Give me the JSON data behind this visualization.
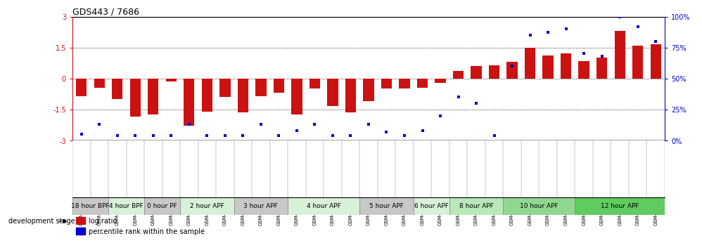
{
  "title": "GDS443 / 7686",
  "samples": [
    "GSM4585",
    "GSM4586",
    "GSM4587",
    "GSM4588",
    "GSM4589",
    "GSM4590",
    "GSM4591",
    "GSM4592",
    "GSM4593",
    "GSM4594",
    "GSM4595",
    "GSM4596",
    "GSM4597",
    "GSM4598",
    "GSM4599",
    "GSM4600",
    "GSM4601",
    "GSM4602",
    "GSM4603",
    "GSM4604",
    "GSM4605",
    "GSM4606",
    "GSM4607",
    "GSM4608",
    "GSM4609",
    "GSM4610",
    "GSM4611",
    "GSM4612",
    "GSM4613",
    "GSM4614",
    "GSM4615",
    "GSM4616",
    "GSM4617"
  ],
  "log_ratio": [
    -0.85,
    -0.45,
    -1.0,
    -1.85,
    -1.75,
    -0.15,
    -2.3,
    -1.6,
    -0.9,
    -1.65,
    -0.85,
    -0.7,
    -1.75,
    -0.5,
    -1.35,
    -1.65,
    -1.1,
    -0.5,
    -0.5,
    -0.45,
    -0.2,
    0.35,
    0.6,
    0.65,
    0.8,
    1.5,
    1.1,
    1.2,
    0.85,
    1.0,
    2.3,
    1.6,
    1.65
  ],
  "percentile": [
    5,
    13,
    4,
    4,
    4,
    4,
    13,
    4,
    4,
    4,
    13,
    4,
    8,
    13,
    4,
    4,
    13,
    7,
    4,
    8,
    20,
    35,
    30,
    4,
    60,
    85,
    87,
    90,
    70,
    68,
    100,
    92,
    80
  ],
  "stages": [
    {
      "label": "18 hour BPF",
      "start": 0,
      "end": 2,
      "color": "#c8c8c8"
    },
    {
      "label": "4 hour BPF",
      "start": 2,
      "end": 4,
      "color": "#d8f0d8"
    },
    {
      "label": "0 hour PF",
      "start": 4,
      "end": 6,
      "color": "#c8c8c8"
    },
    {
      "label": "2 hour APF",
      "start": 6,
      "end": 9,
      "color": "#d8f0d8"
    },
    {
      "label": "3 hour APF",
      "start": 9,
      "end": 12,
      "color": "#c8c8c8"
    },
    {
      "label": "4 hour APF",
      "start": 12,
      "end": 16,
      "color": "#d8f0d8"
    },
    {
      "label": "5 hour APF",
      "start": 16,
      "end": 19,
      "color": "#c8c8c8"
    },
    {
      "label": "6 hour APF",
      "start": 19,
      "end": 21,
      "color": "#d8f0d8"
    },
    {
      "label": "8 hour APF",
      "start": 21,
      "end": 24,
      "color": "#b8e8b8"
    },
    {
      "label": "10 hour APF",
      "start": 24,
      "end": 28,
      "color": "#90d890"
    },
    {
      "label": "12 hour APF",
      "start": 28,
      "end": 33,
      "color": "#60cc60"
    }
  ],
  "ylim": [
    -3,
    3
  ],
  "y_ticks_left": [
    -3,
    -1.5,
    0,
    1.5,
    3
  ],
  "y_ticks_right": [
    0,
    25,
    50,
    75,
    100
  ],
  "bar_color": "#cc1111",
  "scatter_color": "#0000cc",
  "background_color": "#ffffff",
  "title_fontsize": 9,
  "tick_fontsize": 7,
  "sample_fontsize": 5,
  "stage_fontsize": 6.5,
  "legend_fontsize": 7
}
